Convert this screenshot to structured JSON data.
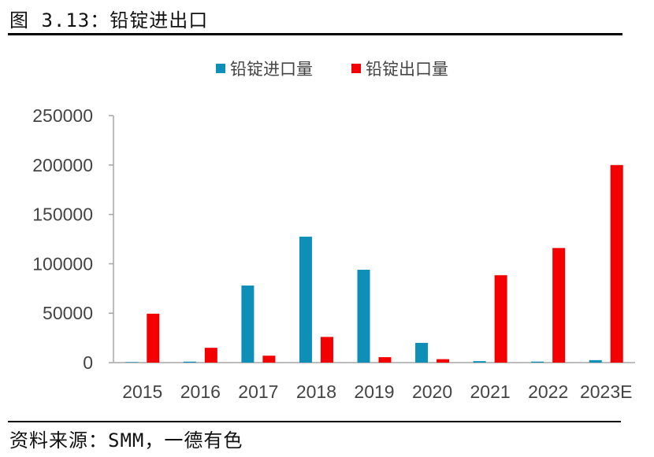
{
  "figure": {
    "title": "图 3.13：铅锭进出口",
    "source": "资料来源：SMM，一德有色"
  },
  "colors": {
    "import": "#0e8fb8",
    "export": "#f40000",
    "axis": "#a6a6a6"
  },
  "chart_data": {
    "type": "bar",
    "categories": [
      "2015",
      "2016",
      "2017",
      "2018",
      "2019",
      "2020",
      "2021",
      "2022",
      "2023E"
    ],
    "series": [
      {
        "name": "铅锭进口量",
        "values": [
          500,
          1000,
          78000,
          127500,
          94000,
          20000,
          1500,
          1000,
          2500
        ]
      },
      {
        "name": "铅锭出口量",
        "values": [
          49500,
          15000,
          7000,
          26000,
          5500,
          3500,
          88500,
          116000,
          200000
        ]
      }
    ],
    "ylim": [
      0,
      250000
    ],
    "yticks": [
      "0",
      "50000",
      "100000",
      "150000",
      "200000",
      "250000"
    ],
    "grid": false,
    "legend": "top-center"
  }
}
